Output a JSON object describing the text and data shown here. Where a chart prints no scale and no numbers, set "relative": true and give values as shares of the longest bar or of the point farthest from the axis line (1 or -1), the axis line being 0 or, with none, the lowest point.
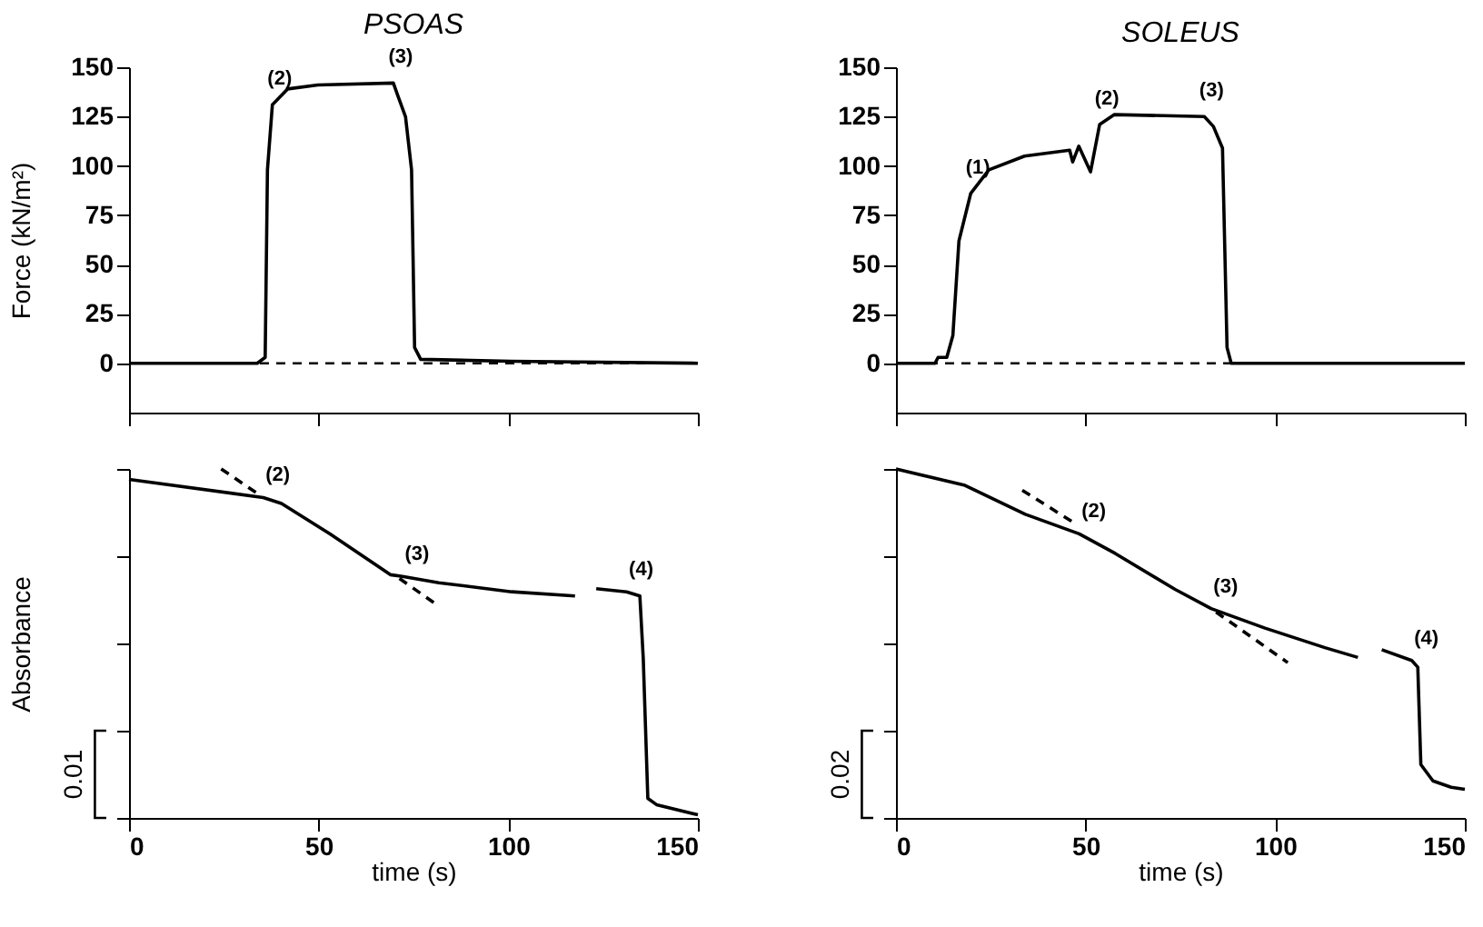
{
  "chart_data": [
    {
      "type": "line",
      "title": "PSOAS",
      "ylabel": "Force (kN/m²)",
      "xlim": [
        0,
        150
      ],
      "xticks": [
        {
          "value": 0,
          "label": null
        },
        {
          "value": 50,
          "label": null
        },
        {
          "value": 100,
          "label": null
        },
        {
          "value": 150,
          "label": null
        }
      ],
      "ylim": [
        -25,
        150
      ],
      "yticks": [
        0,
        25,
        50,
        75,
        100,
        125,
        150
      ],
      "tick_labels": "y",
      "line_style": "solid",
      "marker": "none",
      "series": [
        {
          "color": "#000000",
          "x": [
            0,
            33.8,
            35.9,
            36.5,
            37.8,
            41.8,
            49.8,
            69.7,
            70.8,
            72.9,
            74.5,
            75.3,
            76.9,
            100.8,
            150
          ],
          "values": [
            0,
            0,
            3,
            98,
            131,
            139,
            141,
            142,
            136,
            125,
            98,
            8,
            2,
            1,
            0
          ]
        }
      ],
      "ref_lines": [
        {
          "axis": "y",
          "value": 0,
          "line_style": "dashed",
          "color": "#000000"
        }
      ],
      "annotations": [
        {
          "text": "(2)",
          "x": 37.8,
          "y": 131
        },
        {
          "text": "(3)",
          "x": 69.7,
          "y": 142
        }
      ]
    },
    {
      "type": "line",
      "title": "SOLEUS",
      "xlim": [
        0,
        150
      ],
      "xticks": [
        {
          "value": 0,
          "label": null
        },
        {
          "value": 50,
          "label": null
        },
        {
          "value": 100,
          "label": null
        },
        {
          "value": 150,
          "label": null
        }
      ],
      "ylim": [
        -25,
        150
      ],
      "yticks": [
        0,
        25,
        50,
        75,
        100,
        125,
        150
      ],
      "tick_labels": "y",
      "line_style": "solid",
      "marker": "none",
      "series": [
        {
          "color": "#000000",
          "x": [
            0,
            10.3,
            11.1,
            13.4,
            15,
            16.6,
            19.7,
            24.5,
            33.9,
            45.8,
            46.6,
            48.2,
            51.3,
            53.7,
            57.6,
            81.3,
            83.7,
            86.1,
            87.3,
            88.4,
            150
          ],
          "values": [
            0,
            0,
            3,
            3,
            14,
            62,
            86,
            98,
            105,
            108,
            102,
            110,
            97,
            121,
            126,
            125,
            120,
            109,
            8,
            0,
            0
          ]
        }
      ],
      "ref_lines": [
        {
          "axis": "y",
          "value": 0,
          "line_style": "dashed",
          "color": "#000000"
        }
      ],
      "annotations": [
        {
          "text": "(1)",
          "x": 19.7,
          "y": 86
        },
        {
          "text": "(2)",
          "x": 53.7,
          "y": 121
        },
        {
          "text": "(3)",
          "x": 81.3,
          "y": 125
        }
      ]
    },
    {
      "type": "line",
      "ylabel": "Absorbance",
      "xlabel": "time (s)",
      "xlim": [
        0,
        150
      ],
      "xticks": [
        0,
        50,
        100,
        150
      ],
      "relative": true,
      "tick_labels": "x",
      "marker": "none",
      "series": [
        {
          "color": "#000000",
          "line_style": "solid",
          "x": [
            0,
            35.4,
            40.2,
            53.0,
            68.9,
            72.1,
            81.7,
            100.9,
            117.6,
            120,
            123.2,
            131.2,
            134.7,
            135.6,
            136.8,
            139.1,
            150
          ],
          "values": [
            0.97,
            0.918,
            0.901,
            0.814,
            0.697,
            0.692,
            0.674,
            0.648,
            0.636,
            null,
            0.657,
            0.648,
            0.636,
            0.456,
            0.056,
            0.038,
            0.009
          ]
        },
        {
          "color": "#000000",
          "line_style": "dashed",
          "x": [
            24.3,
            33.8
          ],
          "values": [
            1.0,
            0.93
          ]
        },
        {
          "color": "#000000",
          "line_style": "dashed",
          "x": [
            71.3,
            80.9
          ],
          "values": [
            0.686,
            0.613
          ]
        }
      ],
      "annotations": [
        {
          "text": "(2)",
          "x": 35.4,
          "y": 0.918
        },
        {
          "text": "(3)",
          "x": 72.1,
          "y": 0.692
        },
        {
          "text": "(4)",
          "x": 131.2,
          "y": 0.648
        },
        "0.01"
      ]
    },
    {
      "type": "line",
      "xlabel": "time (s)",
      "xlim": [
        0,
        150
      ],
      "xticks": [
        0,
        50,
        100,
        150
      ],
      "relative": true,
      "tick_labels": "x",
      "marker": "none",
      "series": [
        {
          "color": "#000000",
          "line_style": "solid",
          "x": [
            0,
            18.2,
            34.1,
            48.3,
            57.8,
            73.6,
            83.1,
            97.3,
            113.1,
            121.8,
            124.5,
            128.1,
            136.0,
            137.6,
            138.4,
            141.6,
            146.4,
            150
          ],
          "values": [
            1.0,
            0.953,
            0.87,
            0.814,
            0.758,
            0.655,
            0.6,
            0.544,
            0.488,
            0.46,
            null,
            0.482,
            0.451,
            0.432,
            0.153,
            0.106,
            0.088,
            0.082
          ]
        },
        {
          "color": "#000000",
          "line_style": "dashed",
          "x": [
            33.3,
            47.5
          ],
          "values": [
            0.939,
            0.842
          ]
        },
        {
          "color": "#000000",
          "line_style": "dashed",
          "x": [
            84.4,
            103.3
          ],
          "values": [
            0.59,
            0.445
          ]
        }
      ],
      "annotations": [
        {
          "text": "(2)",
          "x": 48.3,
          "y": 0.814
        },
        {
          "text": "(3)",
          "x": 83.1,
          "y": 0.6
        },
        {
          "text": "(4)",
          "x": 136.0,
          "y": 0.451
        },
        "0.02"
      ]
    }
  ]
}
